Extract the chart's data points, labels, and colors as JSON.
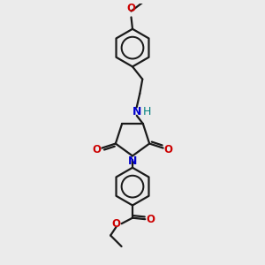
{
  "bg_color": "#ebebeb",
  "bond_color": "#1a1a1a",
  "nitrogen_color": "#0000cc",
  "oxygen_color": "#cc0000",
  "nh_color": "#008080",
  "line_width": 1.6,
  "figsize": [
    3.0,
    3.0
  ],
  "dpi": 100,
  "xlim": [
    0,
    10
  ],
  "ylim": [
    0,
    10
  ]
}
